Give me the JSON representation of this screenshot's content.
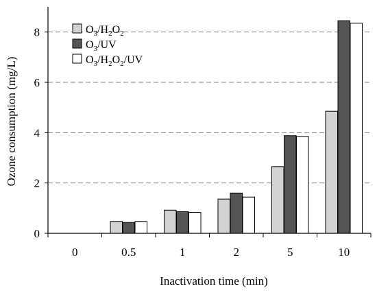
{
  "chart_data": {
    "type": "bar",
    "xlabel": "Inactivation time (min)",
    "ylabel": "Ozone consumption (mg/L)",
    "categories": [
      "0",
      "0.5",
      "1",
      "2",
      "5",
      "10"
    ],
    "ylim": [
      0,
      9
    ],
    "yticks": [
      0,
      2,
      4,
      6,
      8
    ],
    "grid": "horizontal dashed",
    "legend_position": "top-left",
    "series": [
      {
        "name": "O3/H2O2",
        "legend": {
          "parts": [
            {
              "t": "O",
              "sub": false
            },
            {
              "t": "3",
              "sub": true
            },
            {
              "t": "/H",
              "sub": false
            },
            {
              "t": "2",
              "sub": true
            },
            {
              "t": "O",
              "sub": false
            },
            {
              "t": "2",
              "sub": true
            }
          ]
        },
        "color": "#d3d3d3",
        "values": [
          0,
          0.47,
          0.92,
          1.36,
          2.65,
          4.85
        ]
      },
      {
        "name": "O3/UV",
        "legend": {
          "parts": [
            {
              "t": "O",
              "sub": false
            },
            {
              "t": "3",
              "sub": true
            },
            {
              "t": "/UV",
              "sub": false
            }
          ]
        },
        "color": "#555555",
        "values": [
          0,
          0.43,
          0.86,
          1.6,
          3.88,
          8.45
        ]
      },
      {
        "name": "O3/H2O2/UV",
        "legend": {
          "parts": [
            {
              "t": "O",
              "sub": false
            },
            {
              "t": "3",
              "sub": true
            },
            {
              "t": "/H",
              "sub": false
            },
            {
              "t": "2",
              "sub": true
            },
            {
              "t": "O",
              "sub": false
            },
            {
              "t": "2",
              "sub": true
            },
            {
              "t": "/UV",
              "sub": false
            }
          ]
        },
        "color": "#ffffff",
        "values": [
          0,
          0.47,
          0.83,
          1.44,
          3.85,
          8.35
        ]
      }
    ]
  }
}
